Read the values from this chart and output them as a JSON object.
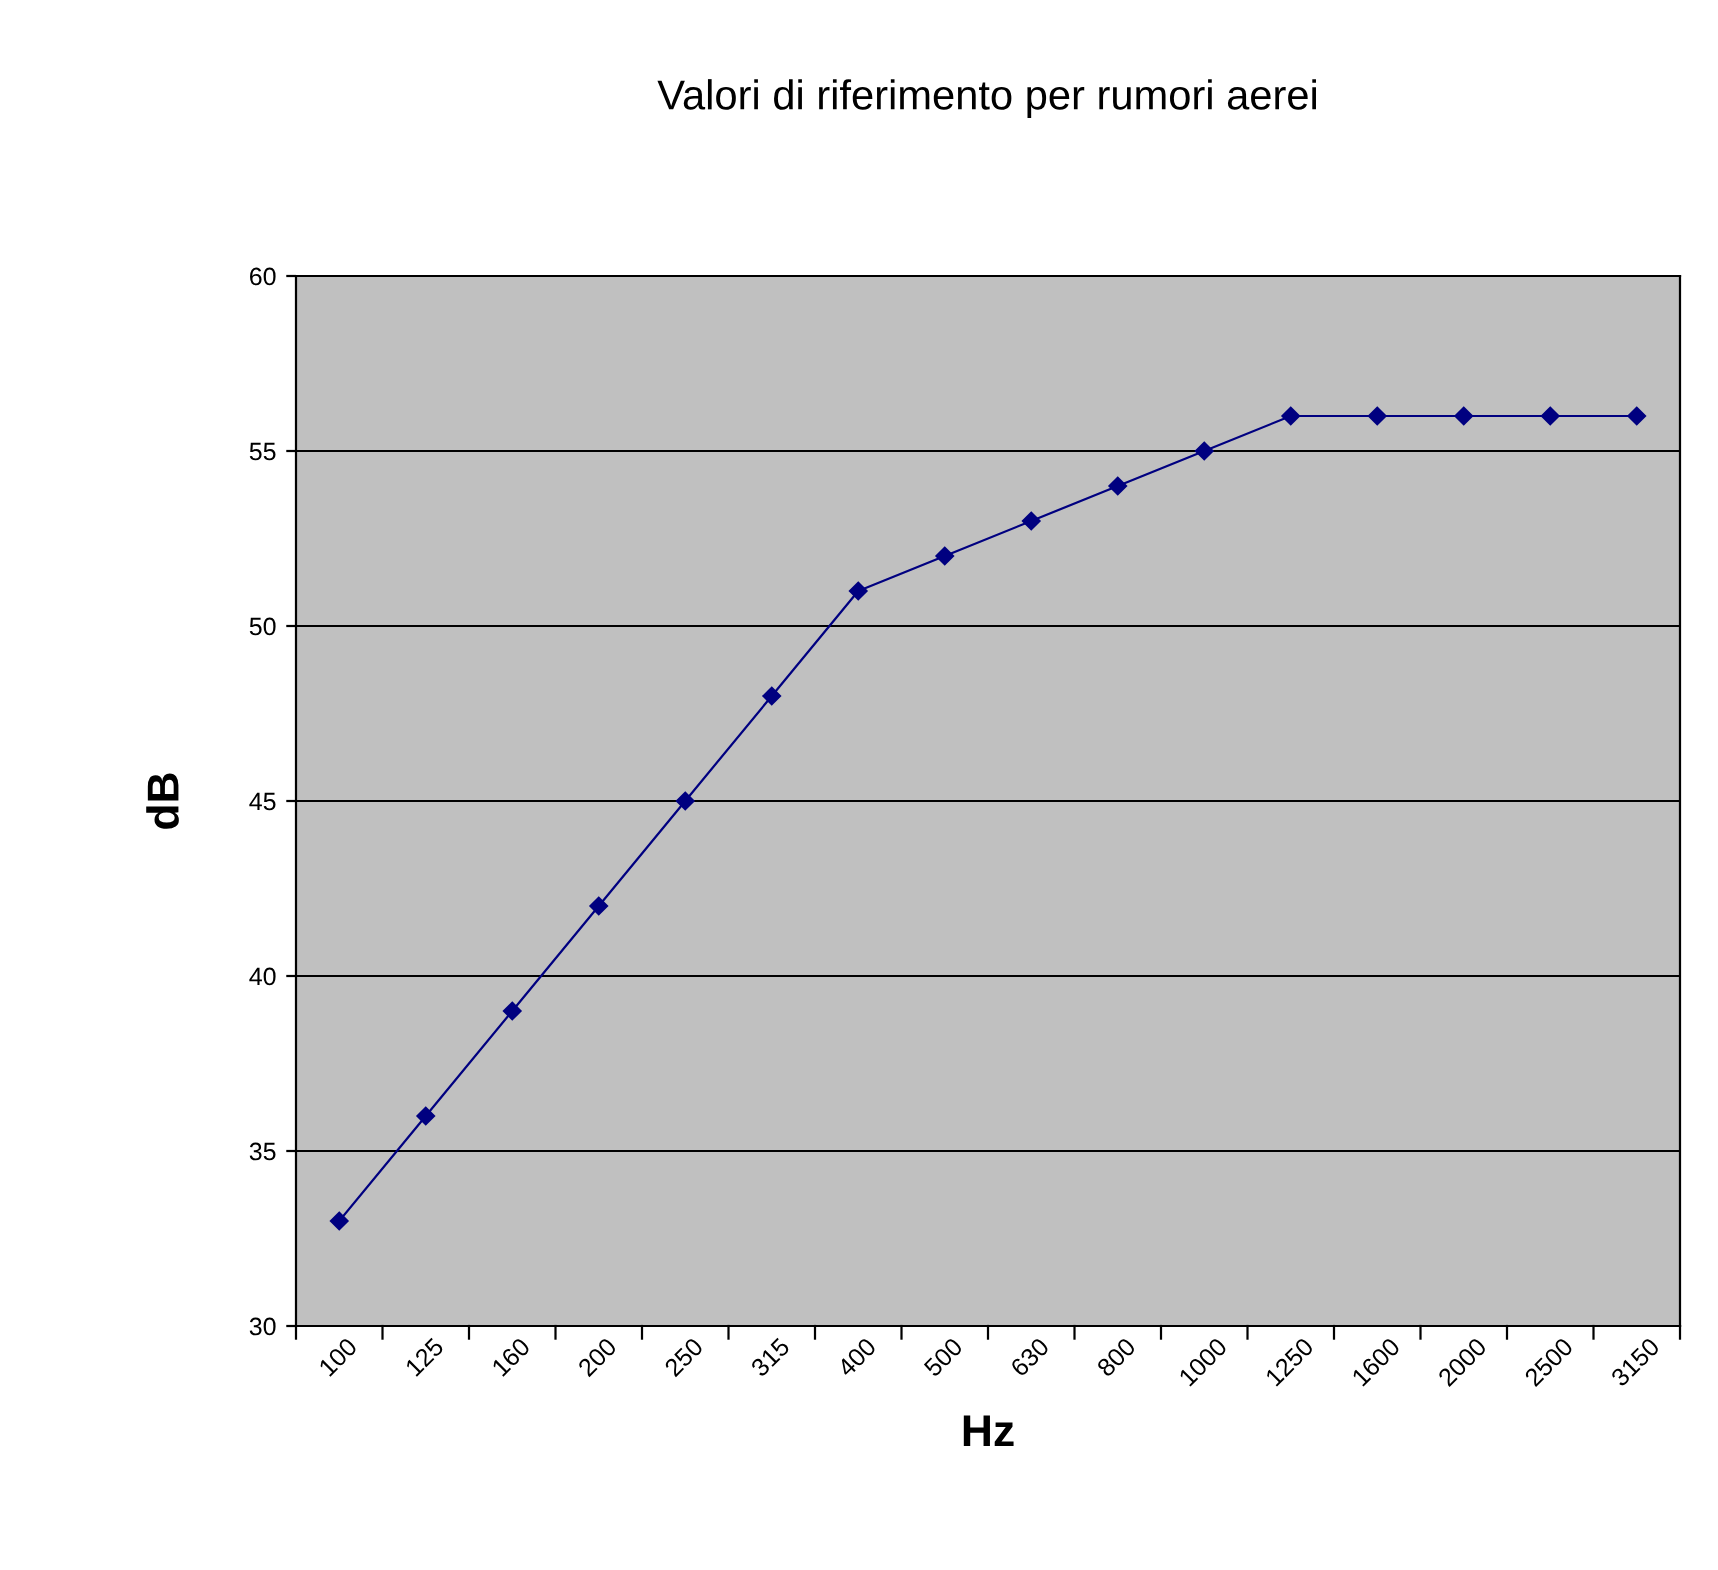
{
  "chart_data": {
    "type": "line",
    "title": "Valori di riferimento per rumori aerei",
    "xlabel": "Hz",
    "ylabel": "dB",
    "categories": [
      "100",
      "125",
      "160",
      "200",
      "250",
      "315",
      "400",
      "500",
      "630",
      "800",
      "1000",
      "1250",
      "1600",
      "2000",
      "2500",
      "3150"
    ],
    "series": [
      {
        "color": "#000080",
        "values": [
          33,
          36,
          39,
          42,
          45,
          48,
          51,
          52,
          53,
          54,
          55,
          56,
          56,
          56,
          56,
          56
        ]
      }
    ],
    "ylim": [
      30,
      60
    ],
    "yticks": [
      30,
      35,
      40,
      45,
      50,
      55,
      60
    ],
    "grid": "y",
    "marker": "diamond",
    "line_style": "solid"
  }
}
